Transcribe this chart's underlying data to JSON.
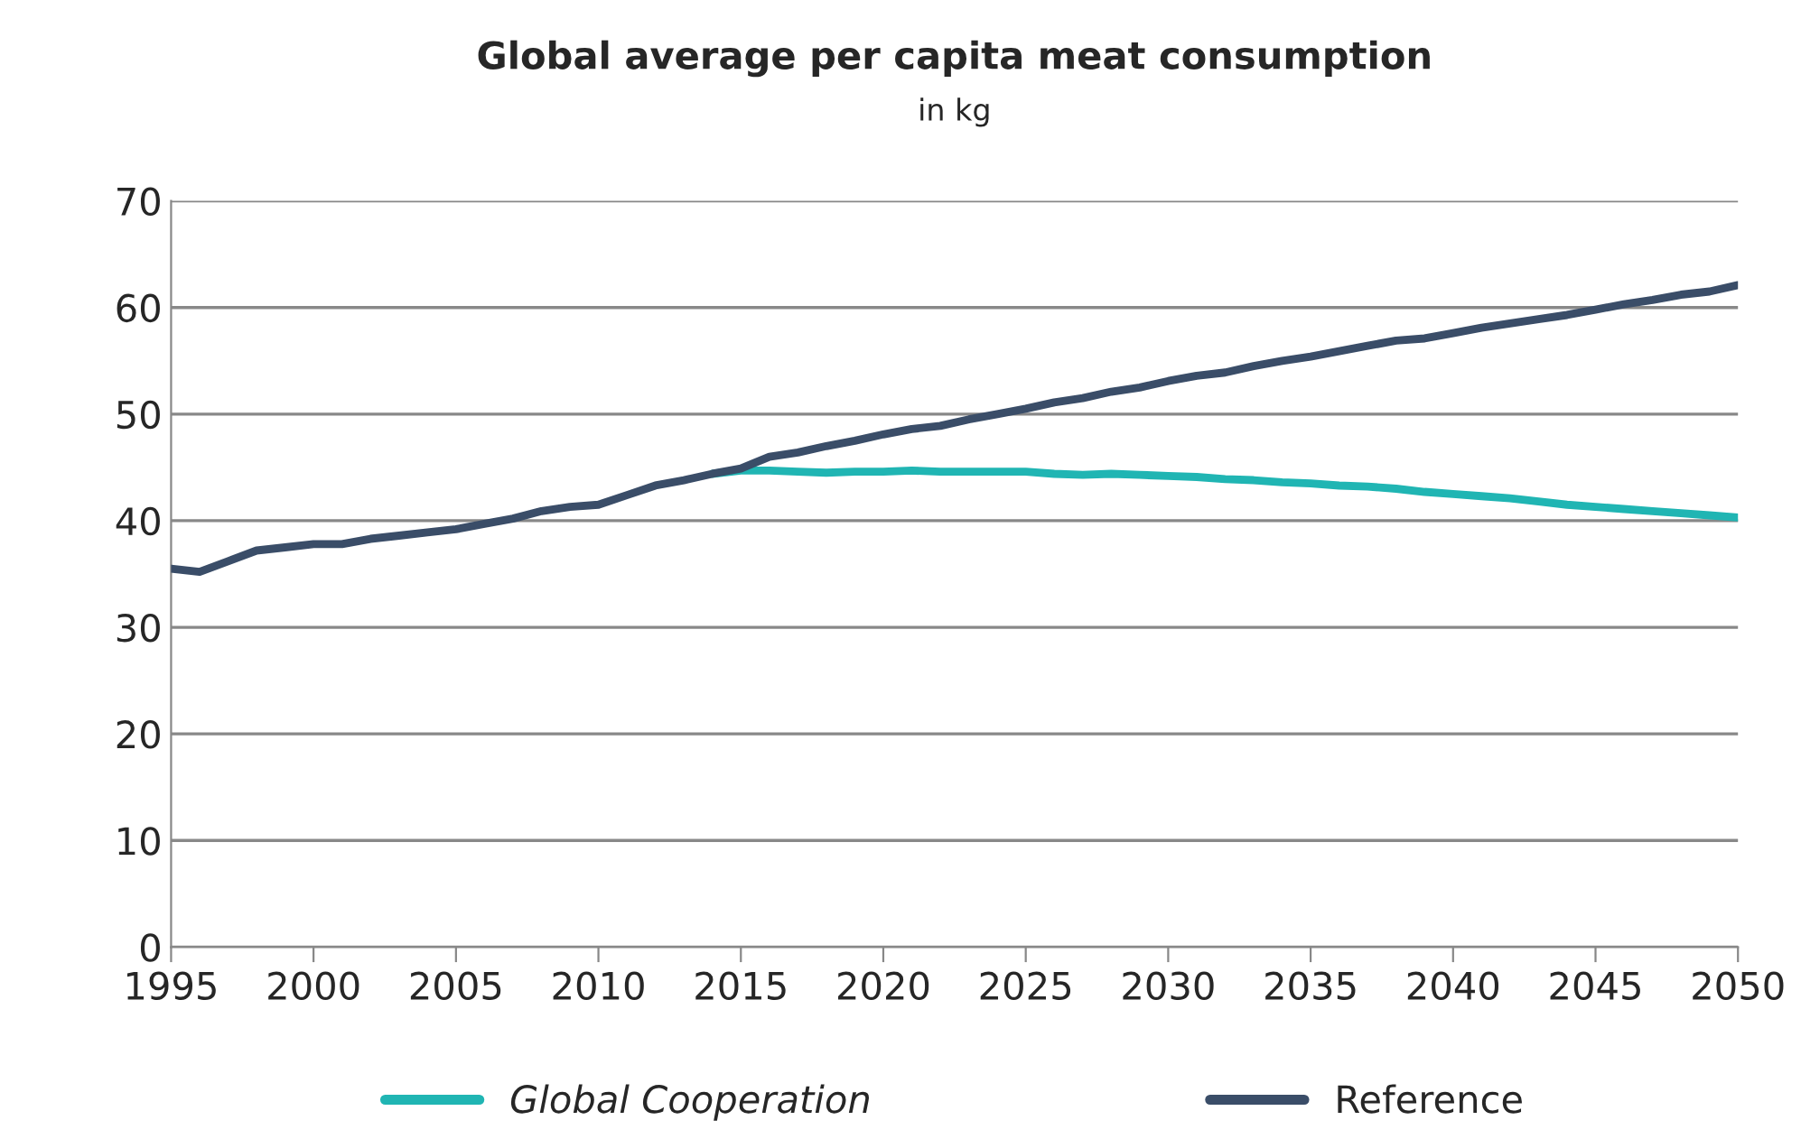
{
  "chart_data": {
    "type": "line",
    "title": "Global average per capita meat consumption",
    "subtitle": "in kg",
    "series": [
      {
        "name": "Global Cooperation",
        "color": "#20b5b3",
        "x": [
          2014,
          2015,
          2016,
          2017,
          2018,
          2019,
          2020,
          2021,
          2022,
          2023,
          2024,
          2025,
          2026,
          2027,
          2028,
          2029,
          2030,
          2031,
          2032,
          2033,
          2034,
          2035,
          2036,
          2037,
          2038,
          2039,
          2040,
          2041,
          2042,
          2043,
          2044,
          2045,
          2046,
          2047,
          2048,
          2049,
          2050
        ],
        "values": [
          44.4,
          44.7,
          44.7,
          44.6,
          44.5,
          44.6,
          44.6,
          44.7,
          44.6,
          44.6,
          44.6,
          44.6,
          44.4,
          44.3,
          44.4,
          44.3,
          44.2,
          44.1,
          43.9,
          43.8,
          43.6,
          43.5,
          43.3,
          43.2,
          43.0,
          42.7,
          42.5,
          42.3,
          42.1,
          41.8,
          41.5,
          41.3,
          41.1,
          40.9,
          40.7,
          40.5,
          40.3
        ]
      },
      {
        "name": "Reference",
        "color": "#3a4d68",
        "x": [
          1995,
          1996,
          1997,
          1998,
          1999,
          2000,
          2001,
          2002,
          2003,
          2004,
          2005,
          2006,
          2007,
          2008,
          2009,
          2010,
          2011,
          2012,
          2013,
          2014,
          2015,
          2016,
          2017,
          2018,
          2019,
          2020,
          2021,
          2022,
          2023,
          2024,
          2025,
          2026,
          2027,
          2028,
          2029,
          2030,
          2031,
          2032,
          2033,
          2034,
          2035,
          2036,
          2037,
          2038,
          2039,
          2040,
          2041,
          2042,
          2043,
          2044,
          2045,
          2046,
          2047,
          2048,
          2049,
          2050
        ],
        "values": [
          35.5,
          35.2,
          36.2,
          37.2,
          37.5,
          37.8,
          37.8,
          38.3,
          38.6,
          38.9,
          39.2,
          39.7,
          40.2,
          40.9,
          41.3,
          41.5,
          42.4,
          43.3,
          43.8,
          44.4,
          44.9,
          46.0,
          46.4,
          47.0,
          47.5,
          48.1,
          48.6,
          48.9,
          49.5,
          50.0,
          50.5,
          51.1,
          51.5,
          52.1,
          52.5,
          53.1,
          53.6,
          53.9,
          54.5,
          55.0,
          55.4,
          55.9,
          56.4,
          56.9,
          57.1,
          57.6,
          58.1,
          58.5,
          58.9,
          59.3,
          59.8,
          60.3,
          60.7,
          61.2,
          61.5,
          62.1
        ]
      }
    ],
    "xlim": [
      1995,
      2050
    ],
    "xticks": [
      1995,
      2000,
      2005,
      2010,
      2015,
      2020,
      2025,
      2030,
      2035,
      2040,
      2045,
      2050
    ],
    "ylim": [
      0,
      70
    ],
    "yticks": [
      0,
      10,
      20,
      30,
      40,
      50,
      60,
      70
    ],
    "grid": "y",
    "legend": "bottom",
    "marker": "none",
    "line_style": "solid"
  }
}
